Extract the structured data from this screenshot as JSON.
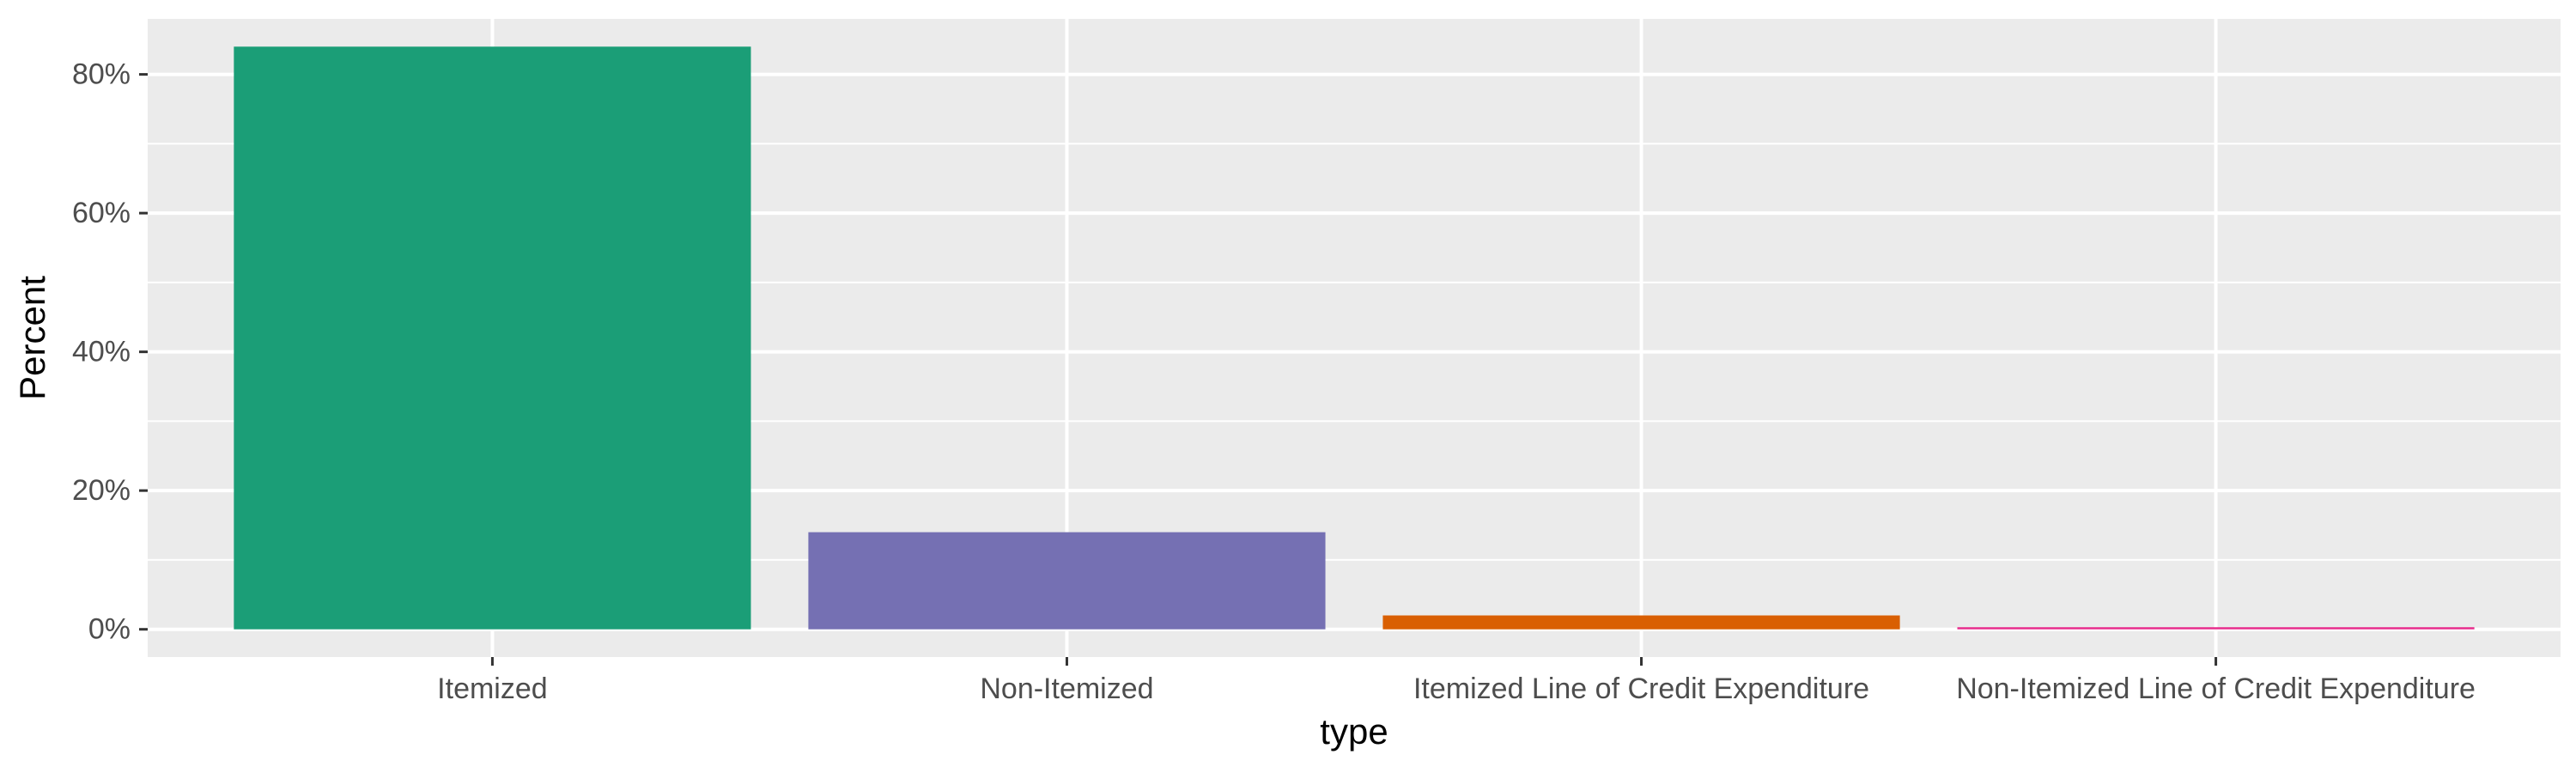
{
  "chart_data": {
    "type": "bar",
    "xlabel": "type",
    "ylabel": "Percent",
    "categories": [
      "Itemized",
      "Non-Itemized",
      "Itemized Line of Credit Expenditure",
      "Non-Itemized Line of Credit Expenditure"
    ],
    "values": [
      0.84,
      0.14,
      0.02,
      0.003
    ],
    "colors": [
      "#1b9e77",
      "#7570b3",
      "#d95f02",
      "#e7298a"
    ],
    "ylim": [
      -0.04,
      0.88
    ],
    "yticks": [
      0,
      0.2,
      0.4,
      0.6,
      0.8
    ],
    "ytick_labels": [
      "0%",
      "20%",
      "40%",
      "60%",
      "80%"
    ],
    "legend": "none",
    "grid": true,
    "panel_background": "#ebebeb",
    "grid_color": "#ffffff"
  }
}
